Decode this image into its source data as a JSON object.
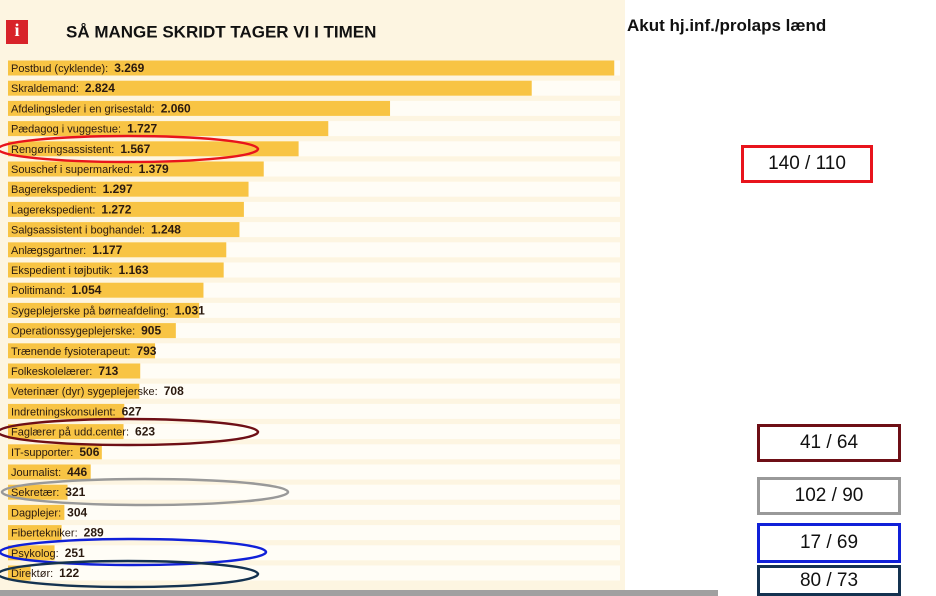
{
  "chart_data": {
    "type": "bar",
    "orientation": "horizontal",
    "title": "SÅ MANGE SKRIDT TAGER VI I TIMEN",
    "categories": [
      "Postbud (cyklende):",
      "Skraldemand:",
      "Afdelingsleder i en grisestald:",
      "Pædagog i vuggestue:",
      "Rengøringsassistent:",
      "Souschef i supermarked:",
      "Bagerekspedient:",
      "Lagerekspedient:",
      "Salgsassistent i boghandel:",
      "Anlægsgartner:",
      "Ekspedient i tøjbutik:",
      "Politimand:",
      "Sygeplejerske på børneafdeling:",
      "Operationssygeplejerske:",
      "Trænende fysioterapeut:",
      "Folkeskolelærer:",
      "Veterinær (dyr) sygeplejerske:",
      "Indretningskonsulent:",
      "Faglærer på udd.center:",
      "IT-supporter:",
      "Journalist:",
      "Sekretær:",
      "Dagplejer:",
      "Fibertekniker:",
      "Psykolog:",
      "Direktør:"
    ],
    "values": [
      3269,
      2824,
      2060,
      1727,
      1567,
      1379,
      1297,
      1272,
      1248,
      1177,
      1163,
      1054,
      1031,
      905,
      793,
      713,
      708,
      627,
      623,
      506,
      446,
      321,
      304,
      289,
      251,
      122
    ],
    "value_labels": [
      "3.269",
      "2.824",
      "2.060",
      "1.727",
      "1.567",
      "1.379",
      "1.297",
      "1.272",
      "1.248",
      "1.177",
      "1.163",
      "1.054",
      "1.031",
      "905",
      "793",
      "713",
      "708",
      "627",
      "623",
      "506",
      "446",
      "321",
      "304",
      "289",
      "251",
      "122"
    ],
    "color": "#f8c444",
    "xlim": [
      0,
      3300
    ]
  },
  "annotations": {
    "title": "Akut hj.inf./prolaps lænd",
    "boxes": [
      {
        "label": "140 / 110",
        "color": "#e8141c"
      },
      {
        "label": "41 / 64",
        "color": "#6e0f16"
      },
      {
        "label": "102 / 90",
        "color": "#999999"
      },
      {
        "label": "17 / 69",
        "color": "#1020d8"
      },
      {
        "label": "80 / 73",
        "color": "#143250"
      }
    ]
  }
}
